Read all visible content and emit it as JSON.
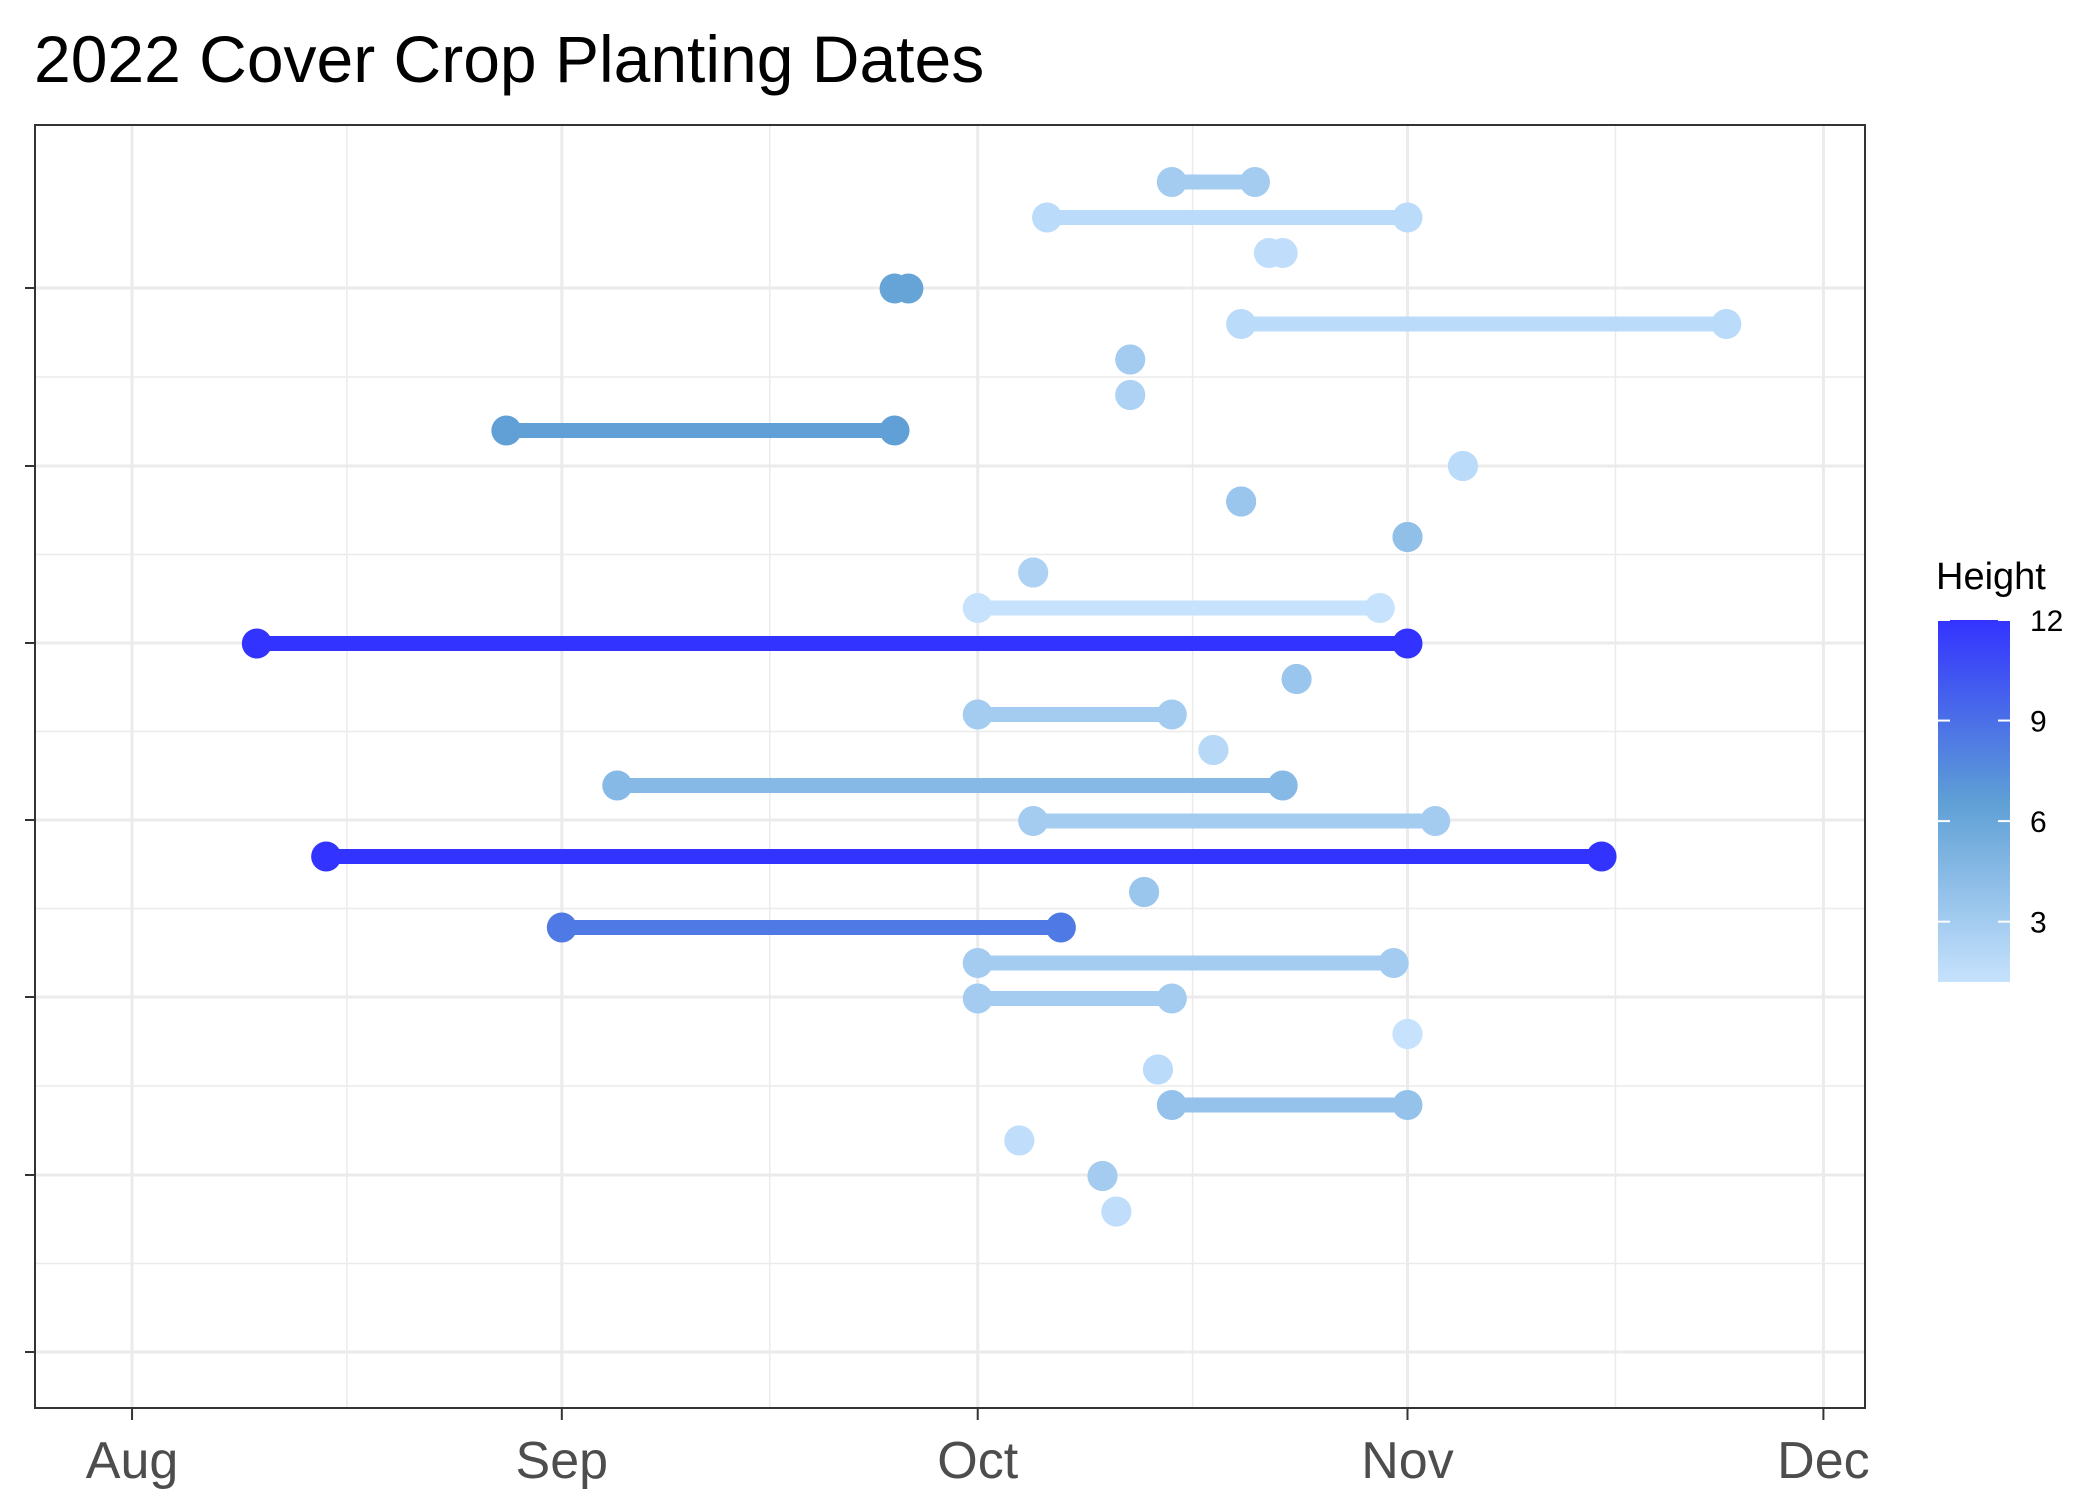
{
  "chart_data": {
    "type": "dumbbell",
    "title": "2022 Cover Crop Planting Dates",
    "xlabel": "",
    "ylabel": "",
    "x_axis": {
      "type": "date",
      "range": [
        "2022-07-25",
        "2022-12-04"
      ],
      "ticks": [
        {
          "date": "2022-08-01",
          "label": "Aug"
        },
        {
          "date": "2022-09-01",
          "label": "Sep"
        },
        {
          "date": "2022-10-01",
          "label": "Oct"
        },
        {
          "date": "2022-11-01",
          "label": "Nov"
        },
        {
          "date": "2022-12-01",
          "label": "Dec"
        }
      ]
    },
    "y_axis": {
      "tick_labels": [
        "",
        "",
        "",
        "",
        "",
        "",
        "",
        ""
      ]
    },
    "grid": true,
    "legend": {
      "title": "Height",
      "position": "right",
      "type": "colorbar",
      "range": [
        1.2,
        12
      ],
      "ticks": [
        3,
        6,
        9,
        12
      ],
      "color_low": "#c6e2fd",
      "color_mid": "#5e9fd5",
      "color_high": "#3333ff"
    },
    "rows": [
      {
        "start": "2022-10-15",
        "end": "2022-10-21",
        "height": 3.0
      },
      {
        "start": "2022-10-06",
        "end": "2022-11-01",
        "height": 1.8
      },
      {
        "start": "2022-10-22",
        "end": "2022-10-23",
        "height": 1.5
      },
      {
        "start": "2022-09-25",
        "end": "2022-09-26",
        "height": 6.2
      },
      {
        "start": "2022-10-20",
        "end": "2022-11-24",
        "height": 1.8
      },
      {
        "start": "2022-10-12",
        "end": "2022-10-12",
        "height": 3.0
      },
      {
        "start": "2022-10-12",
        "end": "2022-10-12",
        "height": 2.5
      },
      {
        "start": "2022-08-28",
        "end": "2022-09-25",
        "height": 6.5
      },
      {
        "start": "2022-11-05",
        "end": "2022-11-05",
        "height": 1.8
      },
      {
        "start": "2022-10-20",
        "end": "2022-10-20",
        "height": 3.5
      },
      {
        "start": "2022-11-01",
        "end": "2022-11-01",
        "height": 4.0
      },
      {
        "start": "2022-10-05",
        "end": "2022-10-05",
        "height": 2.5
      },
      {
        "start": "2022-10-01",
        "end": "2022-10-30",
        "height": 1.2
      },
      {
        "start": "2022-08-10",
        "end": "2022-11-01",
        "height": 12.0
      },
      {
        "start": "2022-10-24",
        "end": "2022-10-24",
        "height": 3.5
      },
      {
        "start": "2022-10-01",
        "end": "2022-10-15",
        "height": 3.0
      },
      {
        "start": "2022-10-18",
        "end": "2022-10-18",
        "height": 2.0
      },
      {
        "start": "2022-09-05",
        "end": "2022-10-23",
        "height": 4.5
      },
      {
        "start": "2022-10-05",
        "end": "2022-11-03",
        "height": 3.0
      },
      {
        "start": "2022-08-15",
        "end": "2022-11-15",
        "height": 12.0
      },
      {
        "start": "2022-10-13",
        "end": "2022-10-13",
        "height": 3.5
      },
      {
        "start": "2022-09-01",
        "end": "2022-10-07",
        "height": 8.5
      },
      {
        "start": "2022-10-01",
        "end": "2022-10-31",
        "height": 3.0
      },
      {
        "start": "2022-10-01",
        "end": "2022-10-15",
        "height": 3.0
      },
      {
        "start": "2022-11-01",
        "end": "2022-11-01",
        "height": 1.2
      },
      {
        "start": "2022-10-14",
        "end": "2022-10-14",
        "height": 1.8
      },
      {
        "start": "2022-10-15",
        "end": "2022-11-01",
        "height": 3.8
      },
      {
        "start": "2022-10-04",
        "end": "2022-10-04",
        "height": 1.5
      },
      {
        "start": "2022-10-10",
        "end": "2022-10-10",
        "height": 3.0
      },
      {
        "start": "2022-10-11",
        "end": "2022-10-11",
        "height": 1.5
      }
    ]
  }
}
